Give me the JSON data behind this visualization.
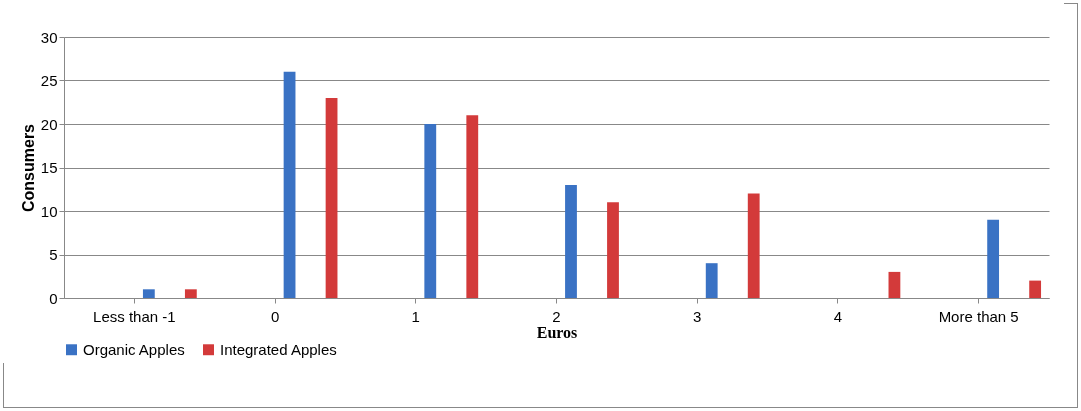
{
  "chart_data": {
    "type": "bar",
    "xlabel": "Euros",
    "ylabel": "Consumers",
    "categories": [
      "Less than -1",
      "0",
      "1",
      "2",
      "3",
      "4",
      "More than 5"
    ],
    "series": [
      {
        "name": "Organic Apples",
        "color": "#3a72c4",
        "values": [
          1,
          26,
          20,
          13,
          4,
          0,
          9
        ]
      },
      {
        "name": "Integrated Apples",
        "color": "#d33a3a",
        "values": [
          1,
          23,
          21,
          11,
          12,
          3,
          2
        ]
      }
    ],
    "ylim": [
      0,
      30
    ],
    "yticks": [
      0,
      5,
      10,
      15,
      20,
      25,
      30
    ],
    "grid": "y",
    "legend": "bottom"
  }
}
